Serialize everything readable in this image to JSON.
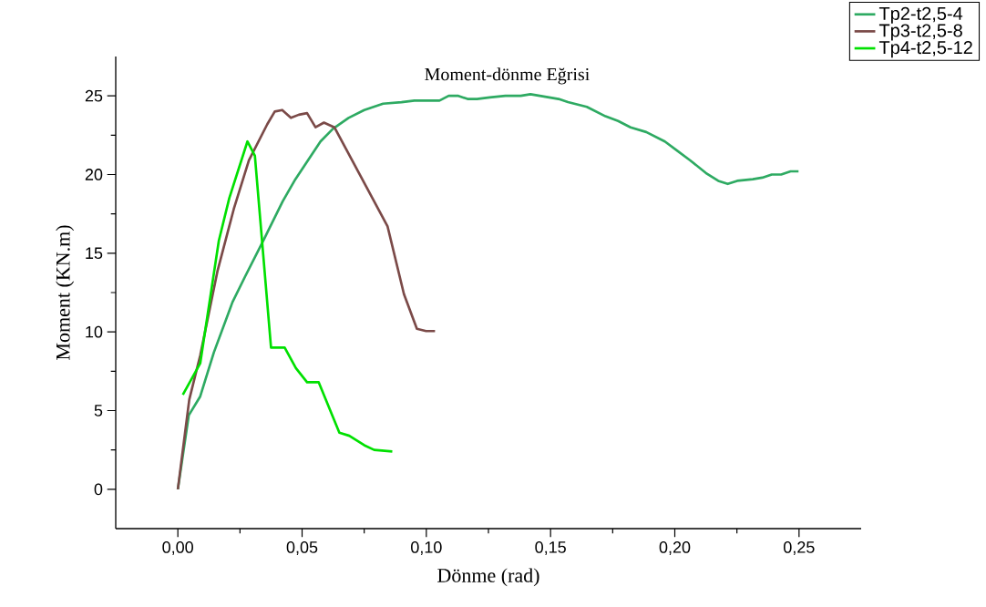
{
  "chart_data": {
    "type": "line",
    "title": "Moment-dönme Eğrisi",
    "xlabel": "Dönme (rad)",
    "ylabel": "Moment (KN.m)",
    "xlim": [
      -0.025,
      0.275
    ],
    "ylim": [
      -2.5,
      27.5
    ],
    "xticks": [
      {
        "value": 0,
        "label": "0,00"
      },
      {
        "value": 0.05,
        "label": "0,05"
      },
      {
        "value": 0.1,
        "label": "0,10"
      },
      {
        "value": 0.15,
        "label": "0,15"
      },
      {
        "value": 0.2,
        "label": "0,20"
      },
      {
        "value": 0.25,
        "label": "0,25"
      }
    ],
    "yticks": [
      0,
      5,
      10,
      15,
      20,
      25
    ],
    "legend": "top right",
    "series": [
      {
        "name": "Tp2-t2,5-4",
        "color": "#2eaa62",
        "x": [
          0,
          0.0044,
          0.009,
          0.0145,
          0.022,
          0.027,
          0.0347,
          0.0422,
          0.0473,
          0.0574,
          0.0624,
          0.0687,
          0.075,
          0.0826,
          0.09,
          0.0952,
          0.1053,
          0.109,
          0.1129,
          0.1166,
          0.1204,
          0.1255,
          0.1318,
          0.138,
          0.1419,
          0.1532,
          0.157,
          0.1646,
          0.1721,
          0.1772,
          0.1822,
          0.1885,
          0.196,
          0.2011,
          0.2062,
          0.2125,
          0.2175,
          0.2213,
          0.2251,
          0.2314,
          0.2352,
          0.239,
          0.2428,
          0.2466,
          0.2498
        ],
        "values": [
          0,
          4.7,
          5.9,
          8.7,
          11.9,
          13.5,
          15.9,
          18.3,
          19.7,
          22.1,
          22.9,
          23.6,
          24.1,
          24.5,
          24.6,
          24.7,
          24.7,
          25.0,
          25.0,
          24.8,
          24.8,
          24.9,
          25.0,
          25.0,
          25.1,
          24.8,
          24.6,
          24.3,
          23.7,
          23.4,
          23.0,
          22.7,
          22.1,
          21.5,
          20.9,
          20.1,
          19.6,
          19.4,
          19.6,
          19.7,
          19.8,
          20.0,
          20.0,
          20.2,
          20.2
        ]
      },
      {
        "name": "Tp3-t2,5-8",
        "color": "#7b4a48",
        "x": [
          0,
          0.0046,
          0.009,
          0.016,
          0.0225,
          0.0286,
          0.036,
          0.039,
          0.042,
          0.0455,
          0.0487,
          0.052,
          0.0554,
          0.0588,
          0.063,
          0.0844,
          0.091,
          0.0962,
          0.0999,
          0.1035
        ],
        "values": [
          0,
          5.7,
          8.5,
          13.9,
          17.8,
          20.9,
          23.2,
          24.0,
          24.1,
          23.6,
          23.8,
          23.9,
          23.0,
          23.3,
          23.0,
          16.7,
          12.4,
          10.2,
          10.05,
          10.05
        ]
      },
      {
        "name": "Tp4-t2,5-12",
        "color": "#00e000",
        "x": [
          0.002,
          0.009,
          0.0165,
          0.0207,
          0.028,
          0.031,
          0.0375,
          0.043,
          0.0475,
          0.052,
          0.0567,
          0.065,
          0.069,
          0.075,
          0.079,
          0.0863
        ],
        "values": [
          6.0,
          8.0,
          15.8,
          18.5,
          22.1,
          21.2,
          9.0,
          9.0,
          7.7,
          6.8,
          6.8,
          3.6,
          3.4,
          2.8,
          2.5,
          2.4
        ]
      }
    ]
  }
}
